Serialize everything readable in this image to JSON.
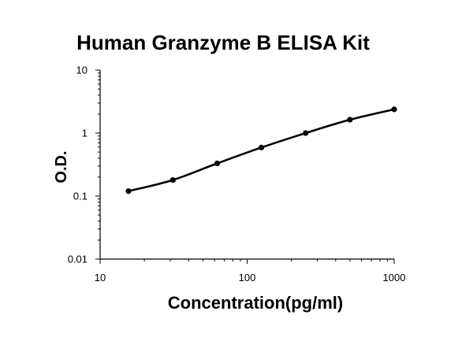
{
  "chart_data": {
    "type": "line",
    "title": "Human Granzyme B ELISA Kit",
    "xlabel": "Concentration(pg/ml)",
    "ylabel": "O.D.",
    "x": [
      15.6,
      31.25,
      62.5,
      125,
      250,
      500,
      1000
    ],
    "y": [
      0.12,
      0.18,
      0.33,
      0.59,
      1.0,
      1.63,
      2.38
    ],
    "xscale": "log",
    "yscale": "log",
    "xlim": [
      10,
      1000
    ],
    "ylim": [
      0.01,
      10
    ],
    "xticks": [
      10,
      100,
      1000
    ],
    "xtick_labels": [
      "10",
      "100",
      "1000"
    ],
    "yticks": [
      10,
      1,
      0.1,
      0.01
    ],
    "ytick_labels": [
      "10",
      "1",
      "0.1",
      "0.01"
    ],
    "markers": true,
    "smooth": true,
    "grid": false,
    "legend": "none",
    "colors": {
      "line": "#000000",
      "marker": "#000000",
      "axis": "#000000",
      "background": "#ffffff"
    }
  }
}
